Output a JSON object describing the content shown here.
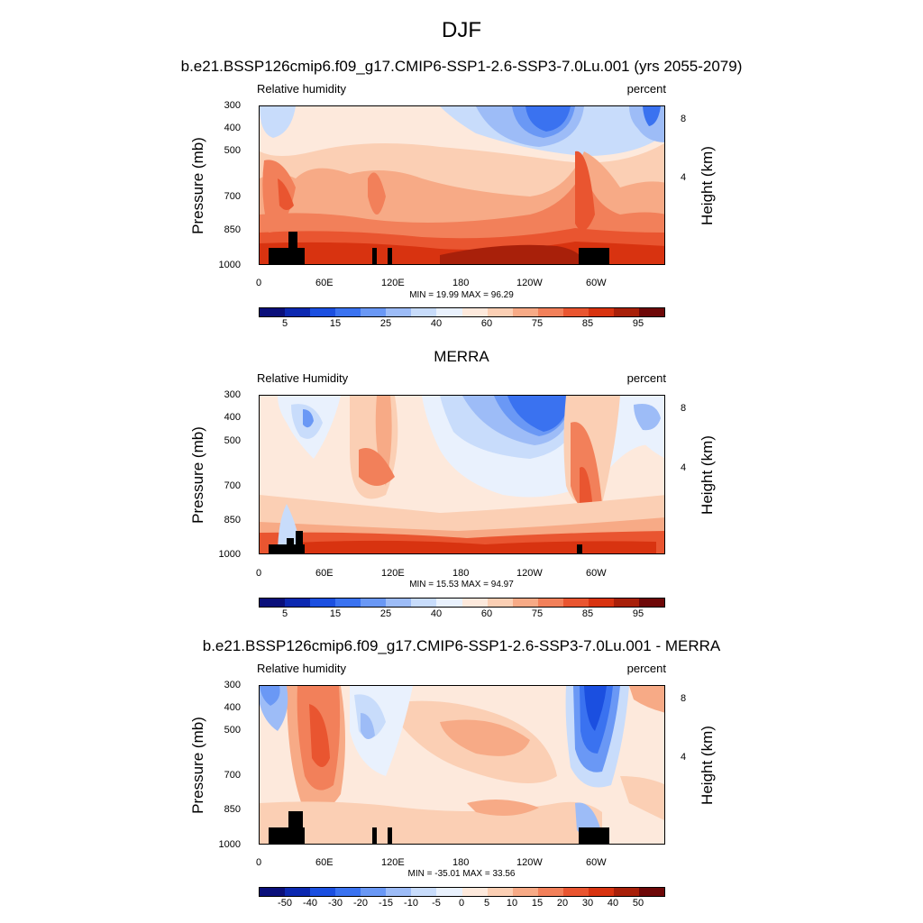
{
  "title": "DJF",
  "chart_data": [
    {
      "type": "heatmap",
      "title": "b.e21.BSSP126cmip6.f09_g17.CMIP6-SSP1-2.6-SSP3-7.0Lu.001 (yrs 2055-2079)",
      "left_header": "Relative humidity",
      "right_header": "percent",
      "ylabel": "Pressure (mb)",
      "ylabel_right": "Height (km)",
      "pressure_ticks": [
        "300",
        "400",
        "500",
        "700",
        "850",
        "1000"
      ],
      "height_ticks": [
        "8",
        "4"
      ],
      "x_ticks": [
        "0",
        "60E",
        "120E",
        "180",
        "120W",
        "60W"
      ],
      "min_max": "MIN = 19.99  MAX = 96.29",
      "colorbar_labels": [
        "5",
        "15",
        "25",
        "40",
        "60",
        "75",
        "85",
        "95"
      ],
      "colorbar_colors": [
        "#0a0f7a",
        "#0c28b0",
        "#1b4fe0",
        "#3a72f0",
        "#6a98f5",
        "#9dbcf7",
        "#c8dcfb",
        "#e9f1fd",
        "#fde9dc",
        "#fbcfb4",
        "#f7aa86",
        "#f2805a",
        "#e95530",
        "#d83310",
        "#a8200a",
        "#6e0808"
      ]
    },
    {
      "type": "heatmap",
      "title": "MERRA",
      "left_header": "Relative Humidity",
      "right_header": "percent",
      "ylabel": "Pressure (mb)",
      "ylabel_right": "Height (km)",
      "pressure_ticks": [
        "300",
        "400",
        "500",
        "700",
        "850",
        "1000"
      ],
      "height_ticks": [
        "8",
        "4"
      ],
      "x_ticks": [
        "0",
        "60E",
        "120E",
        "180",
        "120W",
        "60W"
      ],
      "min_max": "MIN = 15.53  MAX = 94.97",
      "colorbar_labels": [
        "5",
        "15",
        "25",
        "40",
        "60",
        "75",
        "85",
        "95"
      ],
      "colorbar_colors": [
        "#0a0f7a",
        "#0c28b0",
        "#1b4fe0",
        "#3a72f0",
        "#6a98f5",
        "#9dbcf7",
        "#c8dcfb",
        "#e9f1fd",
        "#fde9dc",
        "#fbcfb4",
        "#f7aa86",
        "#f2805a",
        "#e95530",
        "#d83310",
        "#a8200a",
        "#6e0808"
      ]
    },
    {
      "type": "heatmap",
      "title": "b.e21.BSSP126cmip6.f09_g17.CMIP6-SSP1-2.6-SSP3-7.0Lu.001 - MERRA",
      "left_header": "Relative humidity",
      "right_header": "percent",
      "ylabel": "Pressure (mb)",
      "ylabel_right": "Height (km)",
      "pressure_ticks": [
        "300",
        "400",
        "500",
        "700",
        "850",
        "1000"
      ],
      "height_ticks": [
        "8",
        "4"
      ],
      "x_ticks": [
        "0",
        "60E",
        "120E",
        "180",
        "120W",
        "60W"
      ],
      "min_max": "MIN = -35.01  MAX = 33.56",
      "colorbar_labels": [
        "-50",
        "-40",
        "-30",
        "-20",
        "-15",
        "-10",
        "-5",
        "0",
        "5",
        "10",
        "15",
        "20",
        "30",
        "40",
        "50"
      ],
      "colorbar_colors": [
        "#0a0f7a",
        "#0c28b0",
        "#1b4fe0",
        "#3a72f0",
        "#6a98f5",
        "#9dbcf7",
        "#c8dcfb",
        "#e9f1fd",
        "#fde9dc",
        "#fbcfb4",
        "#f7aa86",
        "#f2805a",
        "#e95530",
        "#d83310",
        "#a8200a",
        "#6e0808"
      ]
    }
  ]
}
